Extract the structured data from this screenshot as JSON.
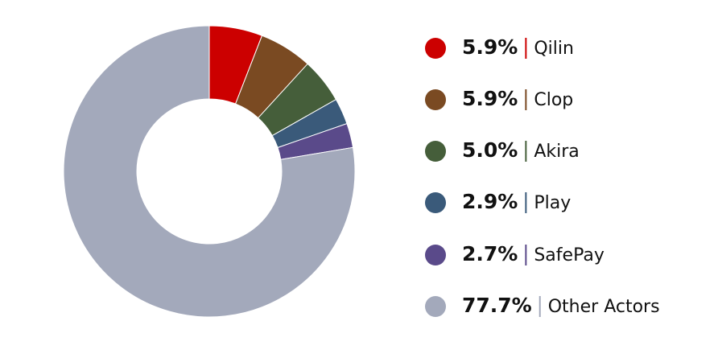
{
  "chart_data": {
    "type": "pie",
    "categories": [
      "Qilin",
      "Clop",
      "Akira",
      "Play",
      "SafePay",
      "Other Actors"
    ],
    "values": [
      5.9,
      5.9,
      5.0,
      2.9,
      2.7,
      77.7
    ],
    "value_labels": [
      "5.9%",
      "5.9%",
      "5.0%",
      "2.9%",
      "2.7%",
      "77.7%"
    ],
    "colors": [
      "#cc0000",
      "#7a4a22",
      "#455e3a",
      "#3a5a7a",
      "#5a4a8a",
      "#a3a9bb"
    ]
  }
}
